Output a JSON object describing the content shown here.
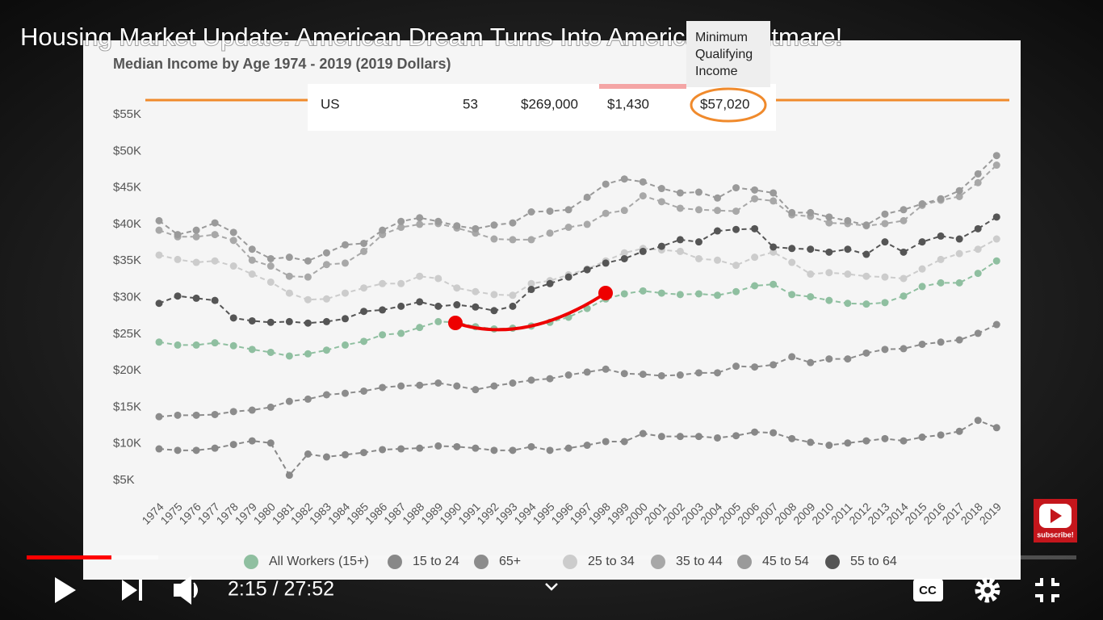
{
  "video": {
    "title": "Housing Market Update: American Dream Turns Into American Nightmare!",
    "time": "2:15 / 27:52",
    "subscribe": "subscribe!"
  },
  "overlay_table": {
    "header": [
      "Minimum",
      "Qualifying",
      "Income"
    ],
    "row": [
      "US",
      "53",
      "$269,000",
      "$1,430",
      "$57,020"
    ]
  },
  "chart_data": {
    "type": "line",
    "title": "Median Income by Age 1974 - 2019 (2019 Dollars)",
    "categories": [
      "1974",
      "1975",
      "1976",
      "1977",
      "1978",
      "1979",
      "1980",
      "1981",
      "1982",
      "1983",
      "1984",
      "1985",
      "1986",
      "1987",
      "1988",
      "1989",
      "1990",
      "1991",
      "1992",
      "1993",
      "1994",
      "1995",
      "1996",
      "1997",
      "1998",
      "1999",
      "2000",
      "2001",
      "2002",
      "2003",
      "2004",
      "2005",
      "2006",
      "2007",
      "2008",
      "2009",
      "2010",
      "2011",
      "2012",
      "2013",
      "2014",
      "2015",
      "2016",
      "2017",
      "2018",
      "2019"
    ],
    "ylim": [
      5000,
      55000
    ],
    "yticks": [
      {
        "value": 5000,
        "label": "$5K"
      },
      {
        "value": 10000,
        "label": "$10K"
      },
      {
        "value": 15000,
        "label": "$15K"
      },
      {
        "value": 20000,
        "label": "$20K"
      },
      {
        "value": 25000,
        "label": "$25K"
      },
      {
        "value": 30000,
        "label": "$30K"
      },
      {
        "value": 35000,
        "label": "$35K"
      },
      {
        "value": 40000,
        "label": "$40K"
      },
      {
        "value": 45000,
        "label": "$45K"
      },
      {
        "value": 50000,
        "label": "$50K"
      },
      {
        "value": 55000,
        "label": "$55K"
      }
    ],
    "legend": "bottom",
    "series": [
      {
        "name": "15 to 24",
        "color": "#888888",
        "values": [
          9300,
          9100,
          9100,
          9400,
          9900,
          10400,
          10100,
          5700,
          8600,
          8200,
          8500,
          8800,
          9200,
          9300,
          9400,
          9700,
          9600,
          9400,
          9100,
          9100,
          9600,
          9100,
          9400,
          9800,
          10300,
          10300,
          11400,
          11000,
          11000,
          11000,
          10800,
          11100,
          11600,
          11500,
          10700,
          10200,
          9800,
          10100,
          10400,
          10700,
          10400,
          10900,
          11200,
          11700,
          13200,
          12200
        ]
      },
      {
        "name": "65+",
        "color": "#8c8c8c",
        "values": [
          13700,
          13900,
          13900,
          14000,
          14400,
          14600,
          15000,
          15800,
          16100,
          16700,
          16900,
          17200,
          17700,
          17900,
          18000,
          18300,
          17900,
          17400,
          17900,
          18300,
          18700,
          18900,
          19400,
          19800,
          20200,
          19600,
          19500,
          19300,
          19400,
          19700,
          19700,
          20600,
          20500,
          20800,
          21900,
          21100,
          21600,
          21600,
          22400,
          22900,
          23000,
          23600,
          23900,
          24200,
          25100,
          26300
        ]
      },
      {
        "name": "25 to 34",
        "color": "#cccccc",
        "values": [
          35800,
          35200,
          34800,
          35000,
          34300,
          33200,
          32100,
          30600,
          29700,
          29800,
          30600,
          31300,
          31900,
          31900,
          32900,
          32600,
          31300,
          30800,
          30400,
          30300,
          31900,
          32300,
          33100,
          33900,
          35000,
          36100,
          36700,
          36500,
          36300,
          35300,
          35100,
          34400,
          35500,
          36200,
          34800,
          33200,
          33400,
          33200,
          32900,
          32800,
          32600,
          33900,
          35200,
          36000,
          36600,
          38000
        ]
      },
      {
        "name": "35 to 44",
        "color": "#a8a8a8",
        "values": [
          39200,
          38300,
          38300,
          38600,
          37800,
          35100,
          34300,
          32900,
          32800,
          34500,
          34700,
          36300,
          38600,
          39600,
          40000,
          40100,
          39500,
          38800,
          38000,
          37900,
          37900,
          38800,
          39600,
          40000,
          41500,
          41900,
          43900,
          43100,
          42200,
          42000,
          41900,
          41800,
          43500,
          43200,
          41300,
          41100,
          40200,
          40100,
          39800,
          40100,
          40500,
          42600,
          43300,
          43800,
          45700,
          48100
        ]
      },
      {
        "name": "45 to 54",
        "color": "#9a9a9a",
        "values": [
          40500,
          38600,
          39200,
          40200,
          38900,
          36600,
          35300,
          35500,
          35000,
          36100,
          37200,
          37400,
          39200,
          40400,
          40900,
          40400,
          39800,
          39400,
          39900,
          40200,
          41700,
          41800,
          42000,
          43700,
          45500,
          46200,
          45800,
          44900,
          44300,
          44400,
          43600,
          45000,
          44700,
          44300,
          41600,
          41600,
          41000,
          40500,
          39900,
          41400,
          42000,
          42800,
          43500,
          44600,
          46900,
          49400
        ]
      },
      {
        "name": "55 to 64",
        "color": "#555555",
        "values": [
          29200,
          30200,
          29900,
          29600,
          27200,
          26800,
          26600,
          26700,
          26500,
          26700,
          27100,
          28100,
          28300,
          28800,
          29400,
          28800,
          29000,
          28700,
          28200,
          28800,
          31100,
          31900,
          32800,
          33800,
          34700,
          35300,
          36300,
          37000,
          37900,
          37600,
          39100,
          39300,
          39400,
          36900,
          36700,
          36600,
          36200,
          36600,
          35900,
          37600,
          36200,
          37600,
          38400,
          38000,
          39400,
          41000
        ]
      },
      {
        "name": "All Workers (15+)",
        "color": "#8fbfa0",
        "values": [
          23900,
          23500,
          23500,
          23800,
          23400,
          22900,
          22500,
          22000,
          22300,
          22800,
          23500,
          24000,
          24900,
          25100,
          25900,
          26700,
          26600,
          26000,
          25700,
          25800,
          26100,
          26600,
          27300,
          28500,
          29800,
          30500,
          30900,
          30600,
          30400,
          30500,
          30300,
          30800,
          31600,
          31800,
          30400,
          30100,
          29600,
          29200,
          29100,
          29300,
          30200,
          31500,
          32000,
          32000,
          33300,
          35000
        ]
      }
    ]
  }
}
